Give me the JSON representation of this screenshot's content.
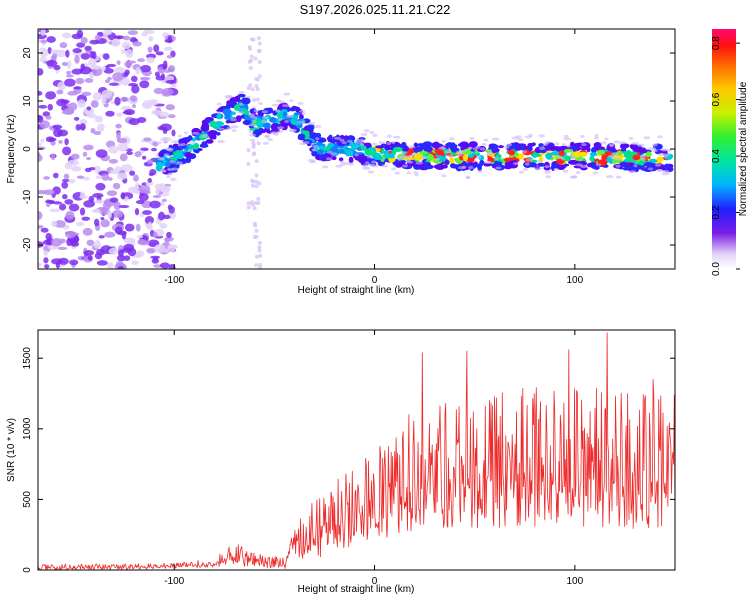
{
  "title": "S197.2026.025.11.21.C22",
  "chart_data": [
    {
      "type": "heatmap",
      "xlabel": "Height of straight line (km)",
      "ylabel": "Frequency (Hz)",
      "xlim": [
        -168,
        150
      ],
      "ylim": [
        -25,
        25
      ],
      "x_ticks": [
        -100,
        0,
        100
      ],
      "y_ticks": [
        -20,
        -10,
        0,
        10,
        20
      ],
      "colorbar": {
        "label": "Normalized spectral amplitude",
        "range": [
          0,
          0.85
        ],
        "ticks": [
          "0.0",
          "0.2",
          "0.4",
          "0.6",
          "0.8"
        ]
      },
      "ridge": {
        "x": [
          -108,
          -100,
          -90,
          -80,
          -70,
          -66,
          -60,
          -50,
          -45,
          -40,
          -35,
          -30,
          -25,
          -20,
          -10,
          0,
          20,
          50,
          100,
          148
        ],
        "freq": [
          -3,
          -2,
          1,
          5,
          8,
          9,
          5,
          6,
          7,
          7,
          4,
          1,
          0,
          0,
          0,
          -1,
          -1.5,
          -1.5,
          -1.5,
          -2
        ]
      }
    },
    {
      "type": "line",
      "xlabel": "Height of straight line (km)",
      "ylabel": "SNR (10 * v/v)",
      "xlim": [
        -168,
        150
      ],
      "ylim": [
        0,
        1700
      ],
      "x_ticks": [
        -100,
        0,
        100
      ],
      "y_ticks": [
        0,
        500,
        1000,
        1500
      ],
      "color": "#ee2a2a",
      "envelope": {
        "x": [
          -168,
          -120,
          -100,
          -80,
          -70,
          -60,
          -45,
          -40,
          -30,
          -20,
          -10,
          0,
          10,
          20,
          30,
          50,
          80,
          100,
          120,
          150
        ],
        "low": [
          0,
          5,
          10,
          20,
          30,
          20,
          10,
          30,
          80,
          120,
          150,
          200,
          250,
          280,
          300,
          300,
          300,
          300,
          300,
          280
        ],
        "high": [
          40,
          45,
          50,
          80,
          210,
          120,
          90,
          300,
          500,
          650,
          750,
          850,
          1000,
          1150,
          1200,
          1250,
          1300,
          1350,
          1300,
          1250
        ]
      },
      "peaks": [
        {
          "x": 24,
          "y": 1540
        },
        {
          "x": 46,
          "y": 1550
        },
        {
          "x": 116,
          "y": 1680
        },
        {
          "x": 97,
          "y": 1560
        },
        {
          "x": 139,
          "y": 1350
        }
      ]
    }
  ]
}
